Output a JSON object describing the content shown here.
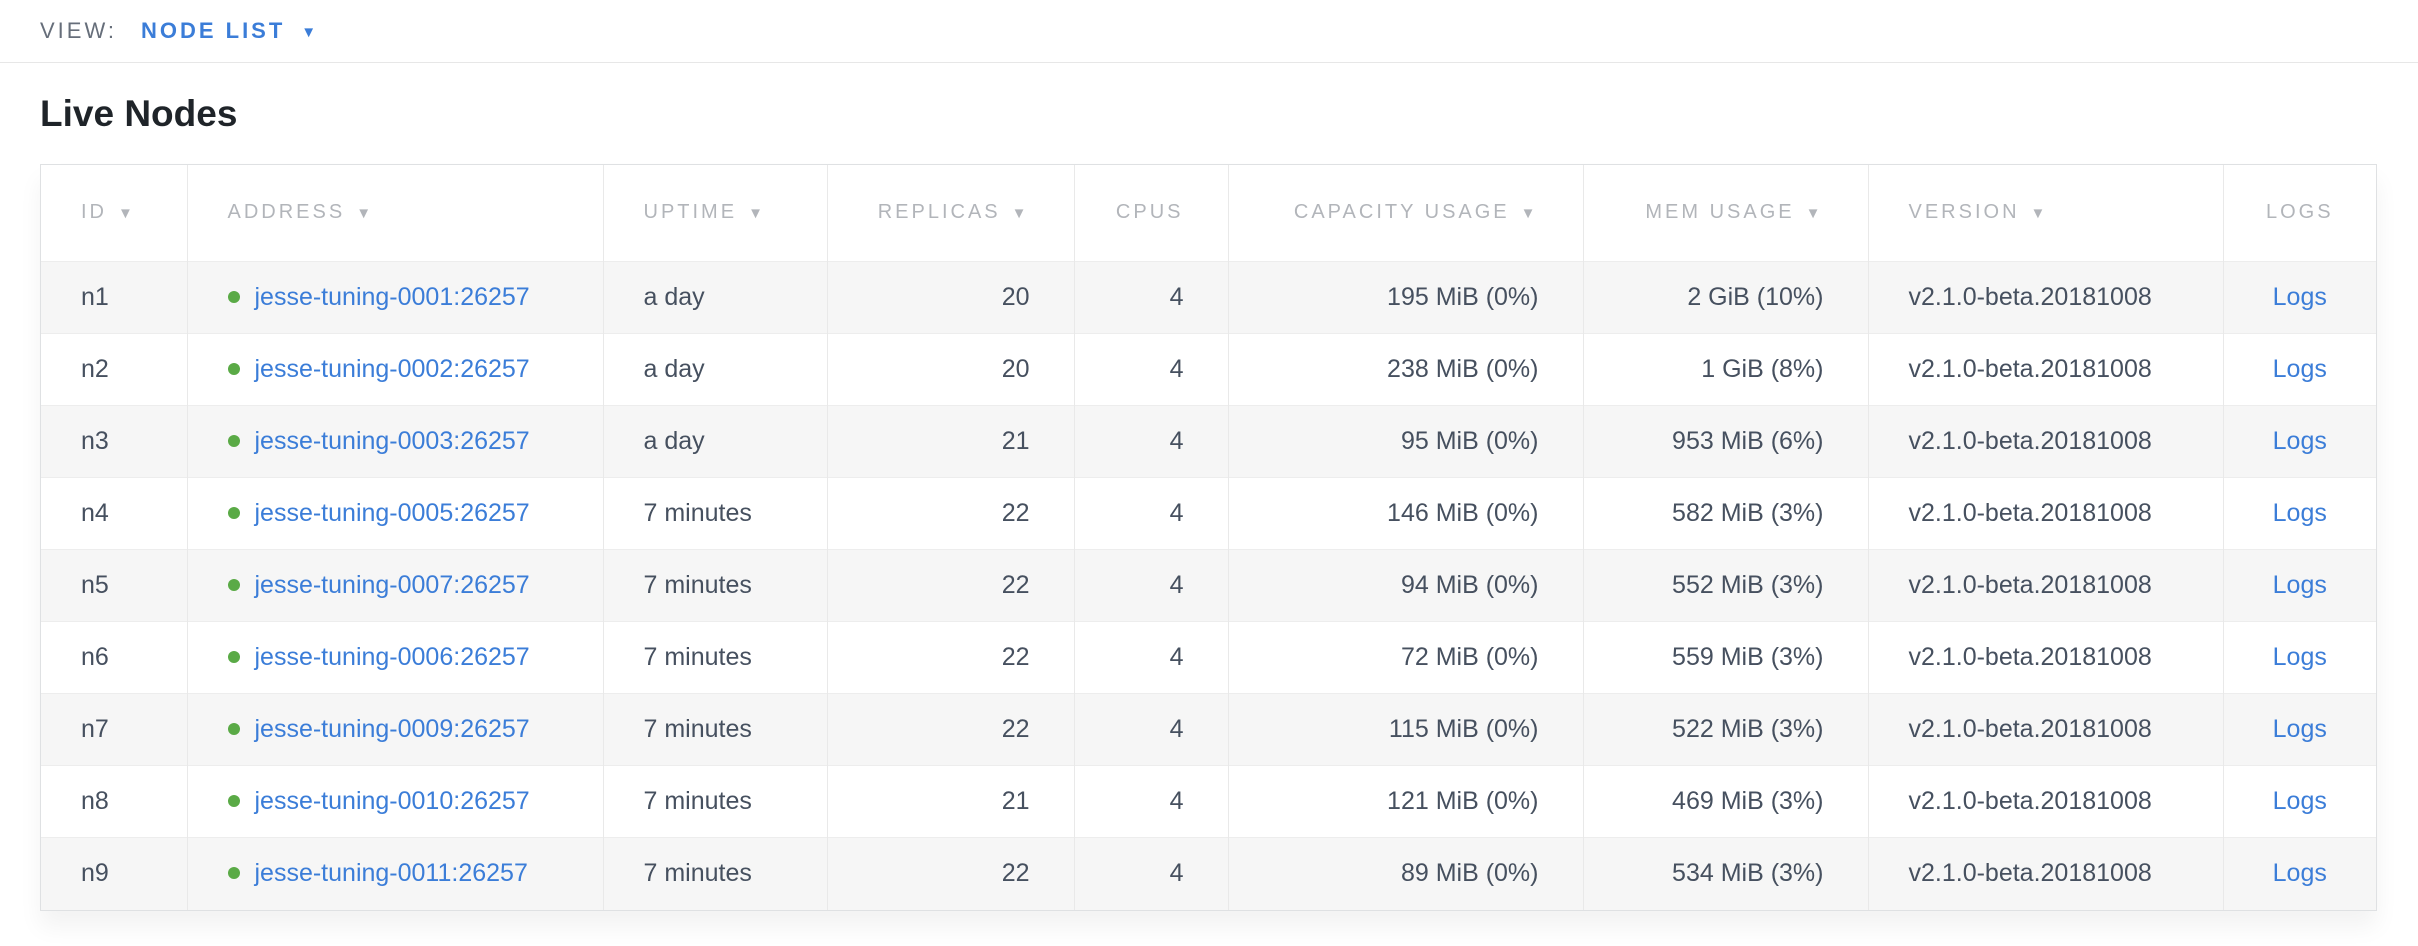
{
  "view_bar": {
    "label": "VIEW:",
    "selected": "NODE LIST"
  },
  "page": {
    "title": "Live Nodes"
  },
  "icons": {
    "sort_desc": "▼",
    "caret_down": "▼",
    "node_status": "●"
  },
  "colors": {
    "accent_blue": "#3b7dd8",
    "link_blue": "#3b7dd8",
    "dot_green": "#5aaa46",
    "header_gray": "#b2b5ba",
    "cell_text": "#46505f",
    "stripe": "#f6f6f6"
  },
  "table": {
    "columns": [
      {
        "key": "id",
        "label": "ID",
        "sortable": true,
        "align": "left"
      },
      {
        "key": "address",
        "label": "ADDRESS",
        "sortable": true,
        "align": "left"
      },
      {
        "key": "uptime",
        "label": "UPTIME",
        "sortable": true,
        "align": "left"
      },
      {
        "key": "replicas",
        "label": "REPLICAS",
        "sortable": true,
        "align": "right"
      },
      {
        "key": "cpus",
        "label": "CPUS",
        "sortable": false,
        "align": "right"
      },
      {
        "key": "capacity",
        "label": "CAPACITY USAGE",
        "sortable": true,
        "align": "right"
      },
      {
        "key": "mem",
        "label": "MEM USAGE",
        "sortable": true,
        "align": "right"
      },
      {
        "key": "version",
        "label": "VERSION",
        "sortable": true,
        "align": "left"
      },
      {
        "key": "logs",
        "label": "LOGS",
        "sortable": false,
        "align": "center"
      }
    ],
    "rows": [
      {
        "id": "n1",
        "address": "jesse-tuning-0001:26257",
        "uptime": "a day",
        "replicas": "20",
        "cpus": "4",
        "capacity": "195 MiB (0%)",
        "mem": "2 GiB (10%)",
        "version": "v2.1.0-beta.20181008",
        "logs": "Logs"
      },
      {
        "id": "n2",
        "address": "jesse-tuning-0002:26257",
        "uptime": "a day",
        "replicas": "20",
        "cpus": "4",
        "capacity": "238 MiB (0%)",
        "mem": "1 GiB (8%)",
        "version": "v2.1.0-beta.20181008",
        "logs": "Logs"
      },
      {
        "id": "n3",
        "address": "jesse-tuning-0003:26257",
        "uptime": "a day",
        "replicas": "21",
        "cpus": "4",
        "capacity": "95 MiB (0%)",
        "mem": "953 MiB (6%)",
        "version": "v2.1.0-beta.20181008",
        "logs": "Logs"
      },
      {
        "id": "n4",
        "address": "jesse-tuning-0005:26257",
        "uptime": "7 minutes",
        "replicas": "22",
        "cpus": "4",
        "capacity": "146 MiB (0%)",
        "mem": "582 MiB (3%)",
        "version": "v2.1.0-beta.20181008",
        "logs": "Logs"
      },
      {
        "id": "n5",
        "address": "jesse-tuning-0007:26257",
        "uptime": "7 minutes",
        "replicas": "22",
        "cpus": "4",
        "capacity": "94 MiB (0%)",
        "mem": "552 MiB (3%)",
        "version": "v2.1.0-beta.20181008",
        "logs": "Logs"
      },
      {
        "id": "n6",
        "address": "jesse-tuning-0006:26257",
        "uptime": "7 minutes",
        "replicas": "22",
        "cpus": "4",
        "capacity": "72 MiB (0%)",
        "mem": "559 MiB (3%)",
        "version": "v2.1.0-beta.20181008",
        "logs": "Logs"
      },
      {
        "id": "n7",
        "address": "jesse-tuning-0009:26257",
        "uptime": "7 minutes",
        "replicas": "22",
        "cpus": "4",
        "capacity": "115 MiB (0%)",
        "mem": "522 MiB (3%)",
        "version": "v2.1.0-beta.20181008",
        "logs": "Logs"
      },
      {
        "id": "n8",
        "address": "jesse-tuning-0010:26257",
        "uptime": "7 minutes",
        "replicas": "21",
        "cpus": "4",
        "capacity": "121 MiB (0%)",
        "mem": "469 MiB (3%)",
        "version": "v2.1.0-beta.20181008",
        "logs": "Logs"
      },
      {
        "id": "n9",
        "address": "jesse-tuning-0011:26257",
        "uptime": "7 minutes",
        "replicas": "22",
        "cpus": "4",
        "capacity": "89 MiB (0%)",
        "mem": "534 MiB (3%)",
        "version": "v2.1.0-beta.20181008",
        "logs": "Logs"
      }
    ]
  }
}
